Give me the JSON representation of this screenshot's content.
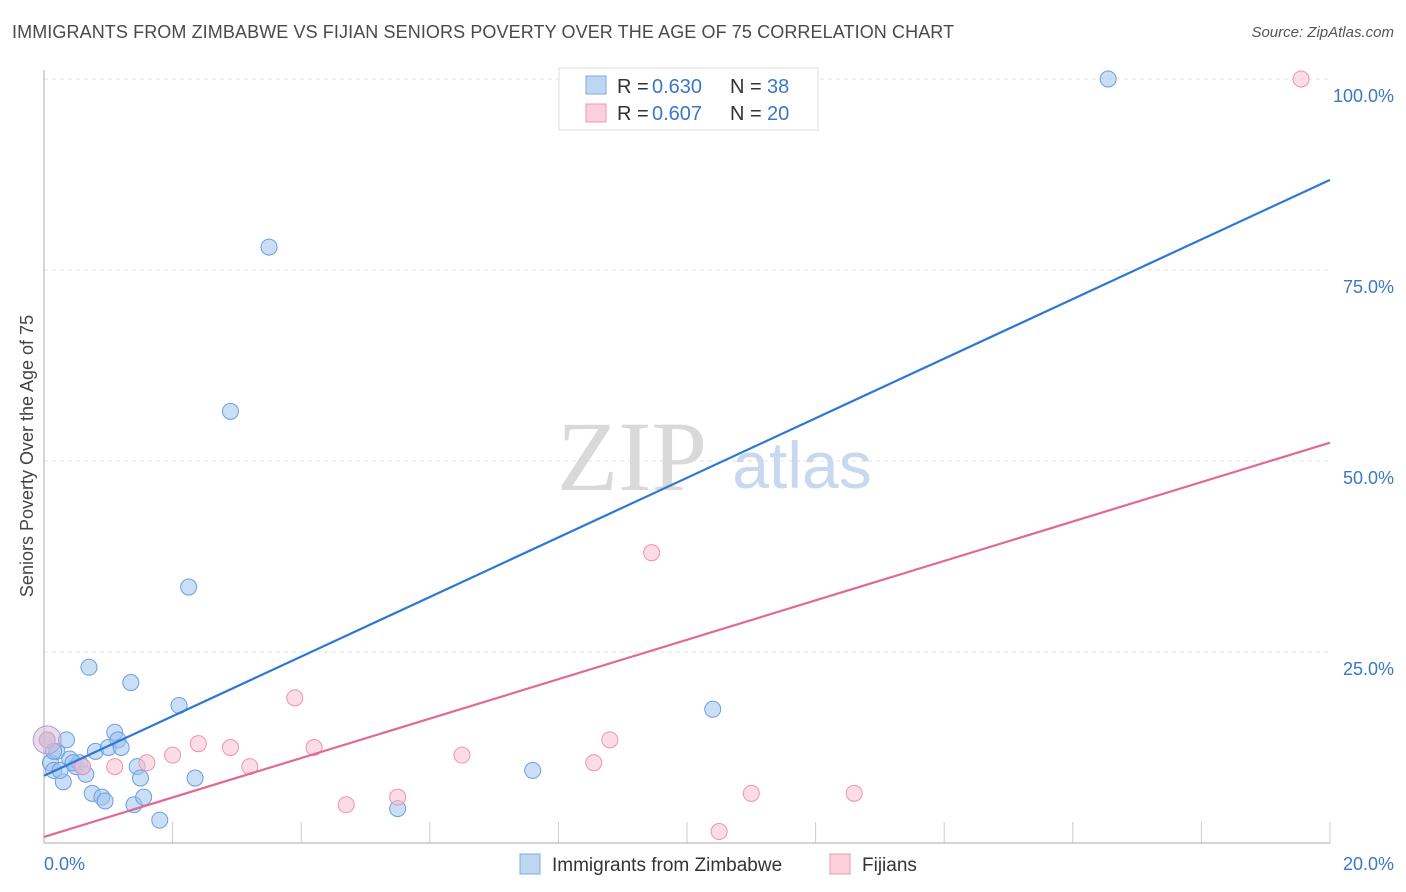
{
  "header": {
    "title": "IMMIGRANTS FROM ZIMBABWE VS FIJIAN SENIORS POVERTY OVER THE AGE OF 75 CORRELATION CHART",
    "source": "Source: ZipAtlas.com"
  },
  "watermark": {
    "zip": "ZIP",
    "atlas": "atlas"
  },
  "chart_data": {
    "type": "scatter",
    "title": "IMMIGRANTS FROM ZIMBABWE VS FIJIAN SENIORS POVERTY OVER THE AGE OF 75 CORRELATION CHART",
    "xlabel": "",
    "ylabel": "Seniors Poverty Over the Age of 75",
    "xlim": [
      0,
      20
    ],
    "ylim": [
      0,
      100
    ],
    "x_tick_labels": {
      "left": "0.0%",
      "right": "20.0%"
    },
    "y_ticks": [
      {
        "value": 25,
        "label": "25.0%"
      },
      {
        "value": 50,
        "label": "50.0%"
      },
      {
        "value": 75,
        "label": "75.0%"
      },
      {
        "value": 100,
        "label": "100.0%"
      }
    ],
    "x_grid": [
      2,
      4,
      6,
      8,
      10,
      12,
      14,
      16,
      18,
      20
    ],
    "legend": [
      {
        "r_label": "R =",
        "r_value": "0.630",
        "n_label": "N =",
        "n_value": "38"
      },
      {
        "r_label": "R =",
        "r_value": "0.607",
        "n_label": "N =",
        "n_value": "20"
      }
    ],
    "series": [
      {
        "name": "Immigrants from Zimbabwe",
        "color": "#9ec3ee",
        "stroke": "#6a9fe0",
        "line_color": "#2e78d2",
        "trend": {
          "x0": 0,
          "y0": 8.8,
          "x1": 20,
          "y1": 86.8
        },
        "points": [
          [
            0.05,
            13.5
          ],
          [
            0.1,
            10.5
          ],
          [
            0.15,
            9.5
          ],
          [
            0.2,
            12.0
          ],
          [
            0.3,
            8.0
          ],
          [
            0.35,
            13.5
          ],
          [
            0.4,
            11.0
          ],
          [
            0.5,
            10.0
          ],
          [
            0.55,
            10.5
          ],
          [
            0.65,
            9.0
          ],
          [
            0.7,
            23.0
          ],
          [
            0.75,
            6.5
          ],
          [
            0.8,
            12.0
          ],
          [
            0.9,
            6.0
          ],
          [
            0.95,
            5.5
          ],
          [
            1.0,
            12.5
          ],
          [
            1.1,
            14.5
          ],
          [
            1.15,
            13.5
          ],
          [
            1.2,
            12.5
          ],
          [
            1.35,
            21.0
          ],
          [
            1.4,
            5.0
          ],
          [
            1.45,
            10.0
          ],
          [
            1.5,
            8.5
          ],
          [
            1.55,
            6.0
          ],
          [
            1.8,
            3.0
          ],
          [
            2.1,
            18.0
          ],
          [
            2.25,
            33.5
          ],
          [
            2.35,
            8.5
          ],
          [
            2.9,
            56.5
          ],
          [
            3.5,
            78.0
          ],
          [
            7.6,
            9.5
          ],
          [
            5.5,
            4.5
          ],
          [
            16.55,
            100.0
          ],
          [
            10.4,
            17.5
          ],
          [
            0.25,
            9.5
          ],
          [
            0.45,
            10.5
          ],
          [
            0.6,
            10.0
          ],
          [
            0.15,
            12.0
          ]
        ]
      },
      {
        "name": "Fijians",
        "color": "#f9c0cf",
        "stroke": "#ef93ab",
        "line_color": "#e06a93",
        "trend": {
          "x0": 0,
          "y0": 0.8,
          "x1": 20,
          "y1": 52.4
        },
        "points": [
          [
            0.05,
            13.5
          ],
          [
            0.6,
            10.0
          ],
          [
            1.1,
            10.0
          ],
          [
            1.6,
            10.5
          ],
          [
            2.0,
            11.5
          ],
          [
            2.4,
            13.0
          ],
          [
            2.9,
            12.5
          ],
          [
            3.2,
            10.0
          ],
          [
            3.9,
            19.0
          ],
          [
            4.2,
            12.5
          ],
          [
            4.7,
            5.0
          ],
          [
            5.5,
            6.0
          ],
          [
            6.5,
            11.5
          ],
          [
            8.55,
            10.5
          ],
          [
            8.8,
            13.5
          ],
          [
            9.45,
            38.0
          ],
          [
            10.5,
            1.5
          ],
          [
            11.0,
            6.5
          ],
          [
            12.6,
            6.5
          ],
          [
            19.55,
            100.0
          ]
        ]
      }
    ]
  }
}
